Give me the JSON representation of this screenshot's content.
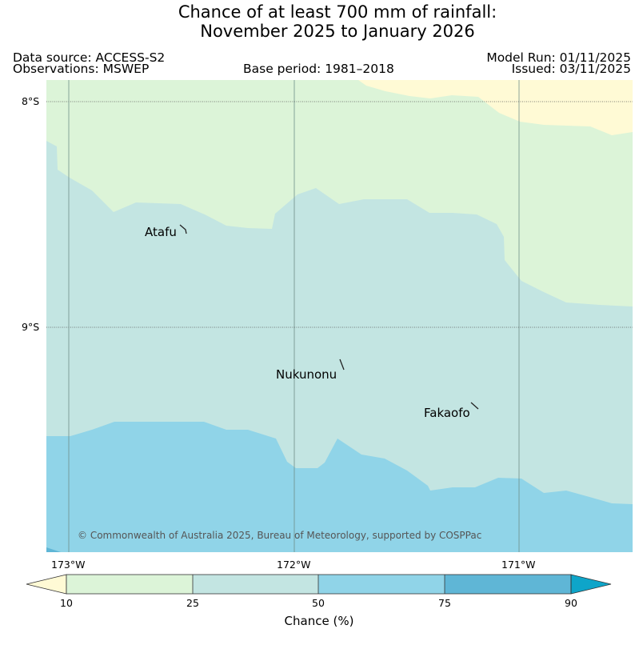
{
  "title": {
    "line1": "Chance of at least 700 mm of rainfall:",
    "line2": "November 2025 to January 2026"
  },
  "meta": {
    "data_source": "Data source: ACCESS-S2",
    "observations": "Observations: MSWEP",
    "base_period": "Base period: 1981–2018",
    "model_run": "Model Run: 01/11/2025",
    "issued": "Issued: 03/11/2025"
  },
  "map": {
    "latitude_labels": [
      "8°S",
      "9°S"
    ],
    "longitude_labels": [
      "173°W",
      "172°W",
      "171°W"
    ],
    "places": [
      "Atafu",
      "Nukunonu",
      "Fakaofo"
    ],
    "credit": "© Commonwealth of Australia 2025, Bureau of Meteorology, supported by COSPPac",
    "colors": {
      "band_lt10": "#fffad5",
      "band_10_25": "#dcf4d8",
      "band_25_50": "#c3e5e2",
      "band_50_75": "#90d4e8",
      "band_75_90": "#5fb6d6",
      "band_gt90": "#0ea5c9"
    }
  },
  "colorbar": {
    "ticks": [
      "10",
      "25",
      "50",
      "75",
      "90"
    ],
    "label": "Chance (%)"
  }
}
